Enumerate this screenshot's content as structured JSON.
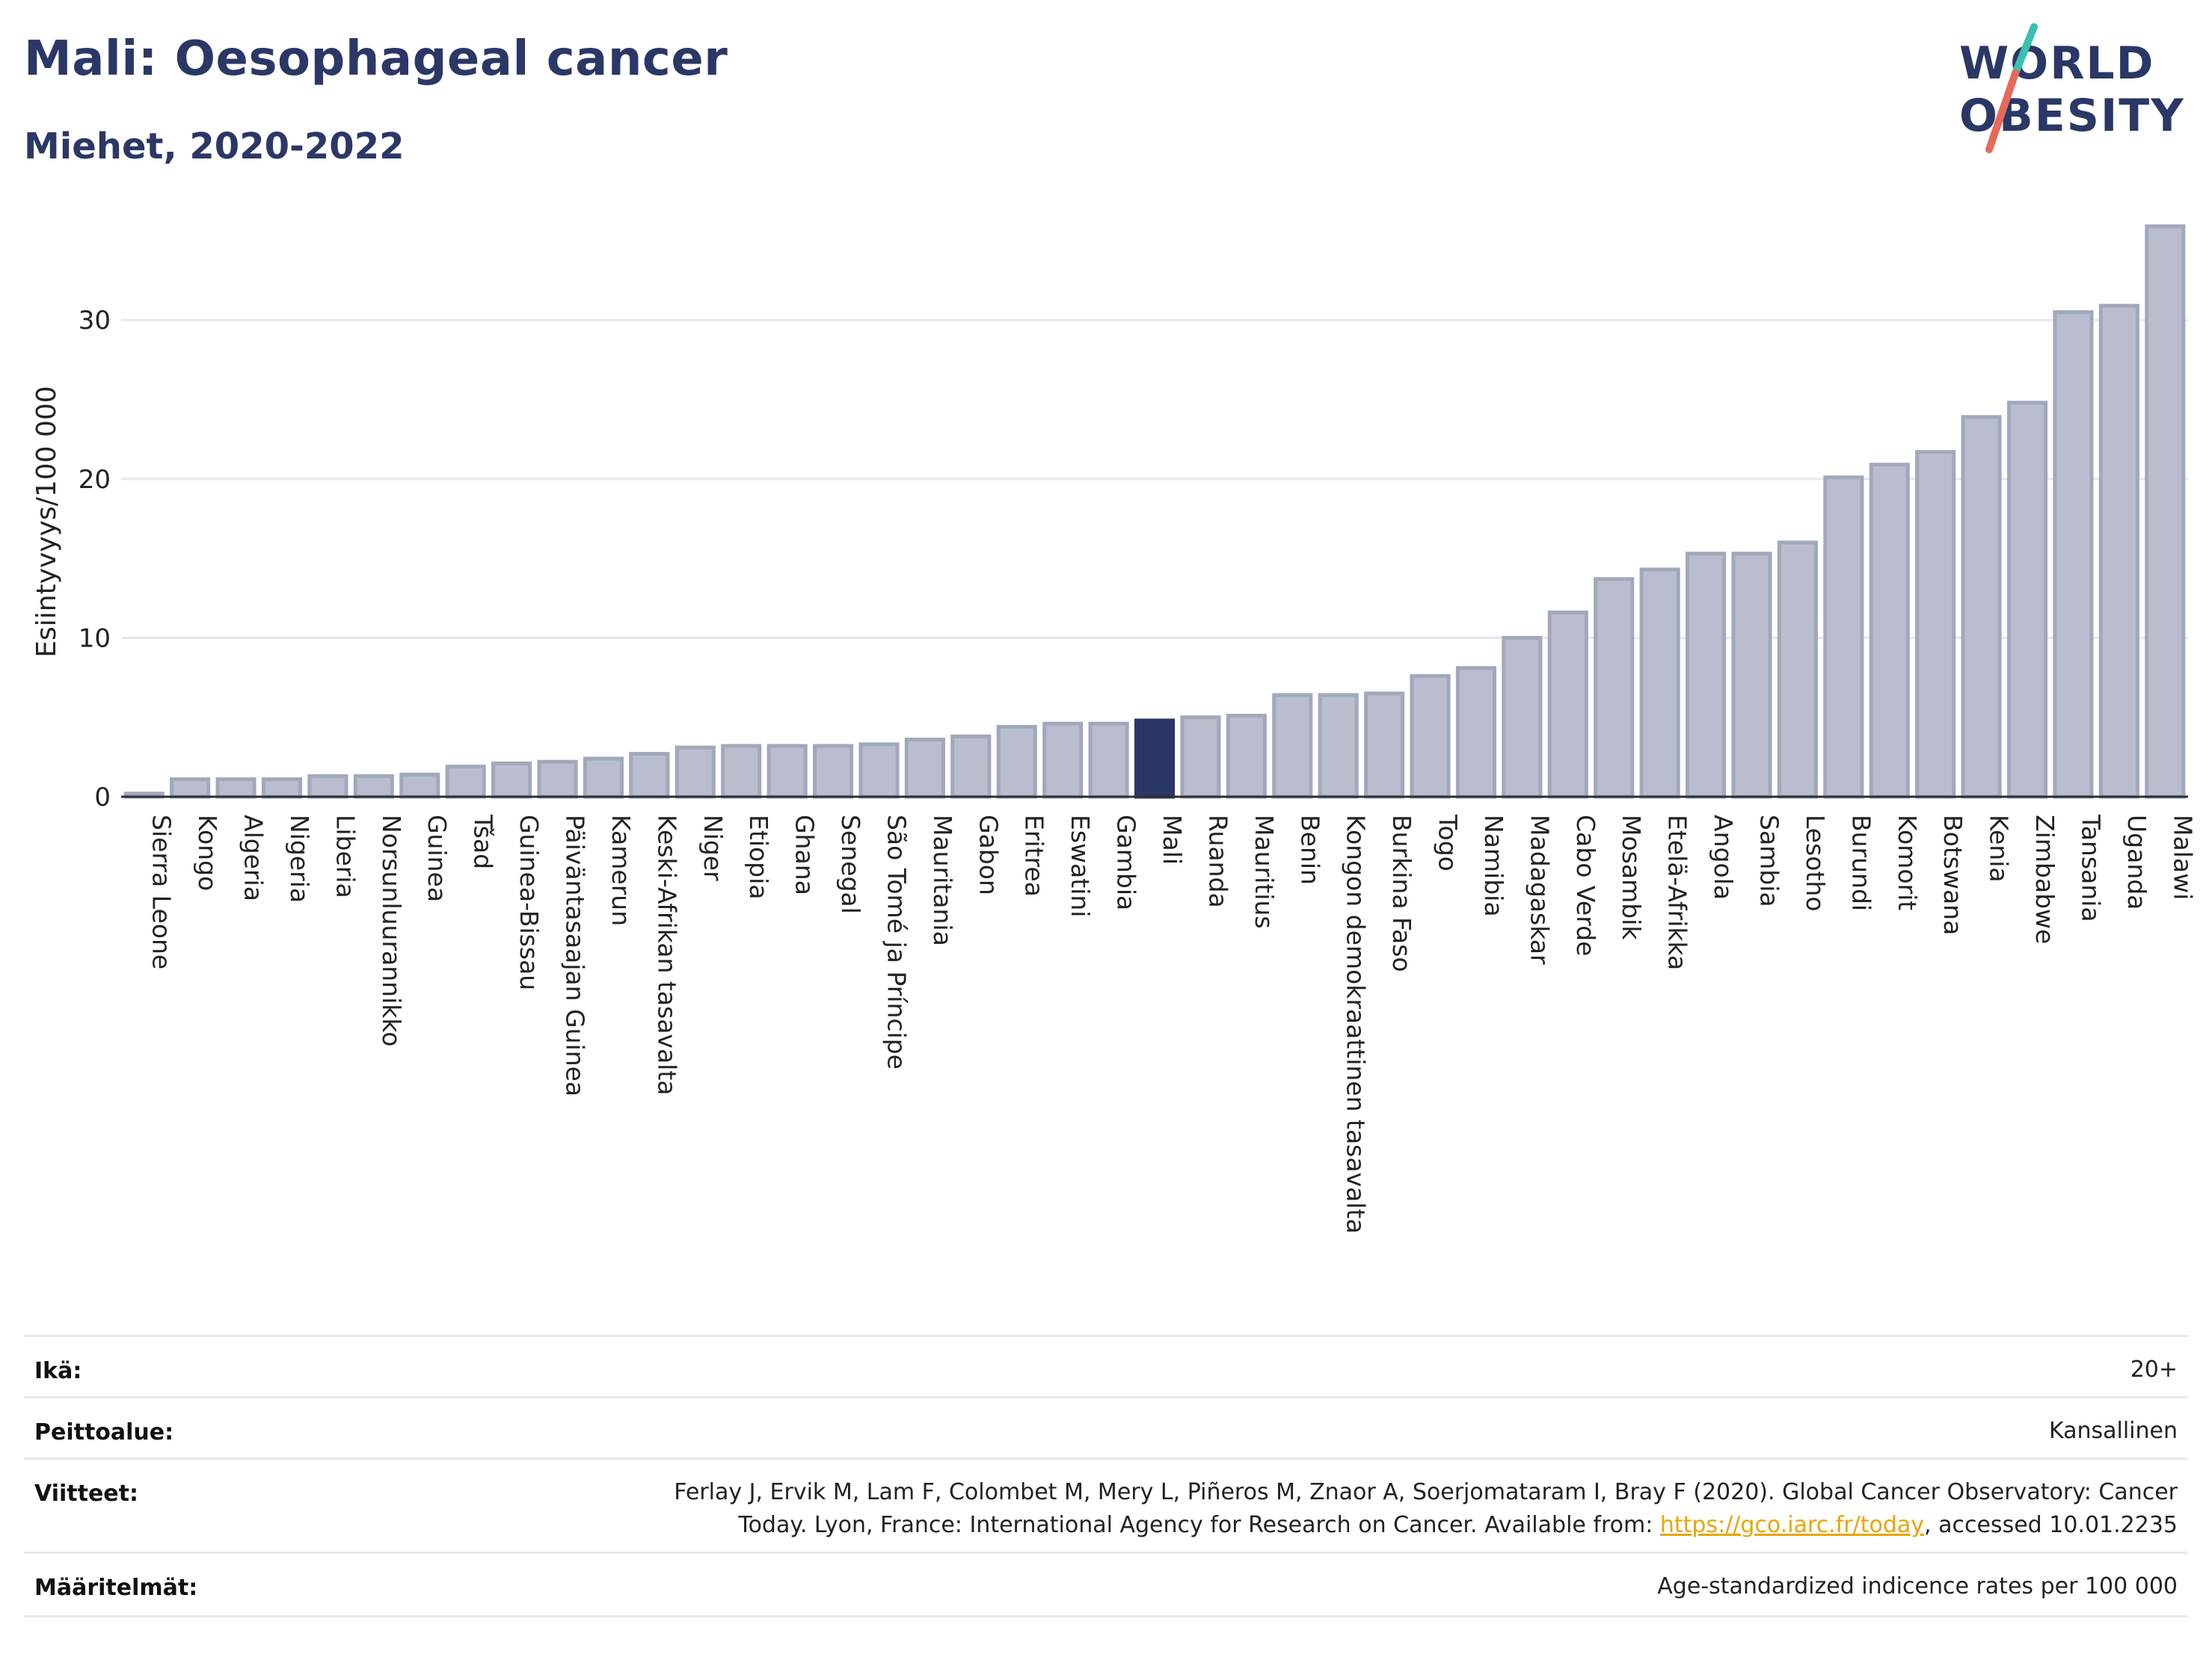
{
  "header": {
    "title": "Mali: Oesophageal cancer",
    "subtitle": "Miehet, 2020-2022"
  },
  "logo": {
    "line1": "WORLD",
    "line2": "OBESITY",
    "colors": {
      "text": "#2b3766",
      "slash_top": "#3bbfb3",
      "slash_bottom": "#e8685a"
    }
  },
  "chart_data": {
    "type": "bar",
    "ylabel": "Esiintyvyys/100 000",
    "xlabel": "",
    "ylim": [
      0,
      36.5
    ],
    "yticks": [
      0,
      10,
      20,
      30
    ],
    "grid": true,
    "highlight": "Mali",
    "colors": {
      "bar": "#b9bdcd",
      "bar_edge": "#a2a8bc",
      "highlight": "#2b3766"
    },
    "categories": [
      "Sierra Leone",
      "Kongo",
      "Algeria",
      "Nigeria",
      "Liberia",
      "Norsunluurannikko",
      "Guinea",
      "Tšad",
      "Guinea-Bissau",
      "Päiväntasaajan Guinea",
      "Kamerun",
      "Keski-Afrikan tasavalta",
      "Niger",
      "Etiopia",
      "Ghana",
      "Senegal",
      "São Tomé ja Príncipe",
      "Mauritania",
      "Gabon",
      "Eritrea",
      "Eswatini",
      "Gambia",
      "Mali",
      "Ruanda",
      "Mauritius",
      "Benin",
      "Kongon demokraattinen tasavalta",
      "Burkina Faso",
      "Togo",
      "Namibia",
      "Madagaskar",
      "Cabo Verde",
      "Mosambik",
      "Etelä-Afrikka",
      "Angola",
      "Sambia",
      "Lesotho",
      "Burundi",
      "Komorit",
      "Botswana",
      "Kenia",
      "Zimbabwe",
      "Tansania",
      "Uganda",
      "Malawi"
    ],
    "values": [
      0.2,
      1.1,
      1.1,
      1.1,
      1.3,
      1.3,
      1.4,
      1.9,
      2.1,
      2.2,
      2.4,
      2.7,
      3.1,
      3.2,
      3.2,
      3.2,
      3.3,
      3.6,
      3.8,
      4.4,
      4.6,
      4.6,
      4.8,
      5.0,
      5.1,
      6.4,
      6.4,
      6.5,
      7.6,
      8.1,
      10.0,
      11.6,
      13.7,
      14.3,
      15.3,
      15.3,
      16.0,
      20.1,
      20.9,
      21.7,
      23.9,
      24.8,
      30.5,
      30.9,
      35.9
    ]
  },
  "meta": [
    {
      "key": "Ikä:",
      "value": "20+"
    },
    {
      "key": "Peittoalue:",
      "value": "Kansallinen"
    },
    {
      "key": "Viitteet:",
      "value_line1": "Ferlay J, Ervik M, Lam F, Colombet M, Mery L, Piñeros M, Znaor A, Soerjomataram I, Bray F (2020). Global Cancer Observatory: Cancer",
      "value_line2_pre": "Today. Lyon, France: International Agency for Research on Cancer. Available from: ",
      "link": "https://gco.iarc.fr/today",
      "value_line2_post": ", accessed 10.01.2235"
    },
    {
      "key": "Määritelmät:",
      "value": "Age-standardized indicence rates per 100 000"
    }
  ]
}
